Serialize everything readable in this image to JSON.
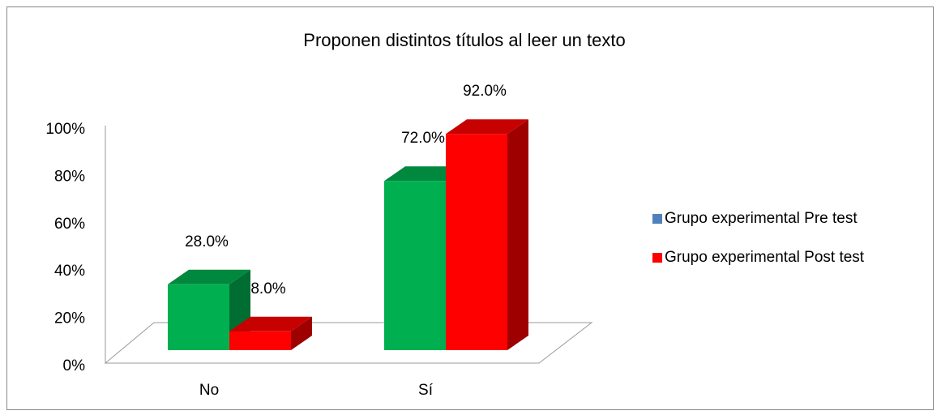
{
  "chart_data": {
    "type": "bar3d",
    "title": "Proponen distintos títulos al leer un texto",
    "categories": [
      "No",
      "Sí"
    ],
    "series": [
      {
        "name": "Grupo experimental Pre test",
        "color": "#00b050",
        "legend_color": "#4f81bd",
        "values": [
          28,
          72
        ],
        "value_labels": [
          "28.0%",
          "72.0%"
        ]
      },
      {
        "name": "Grupo experimental Post test",
        "color": "#ff0000",
        "legend_color": "#ff0000",
        "values": [
          8,
          92
        ],
        "value_labels": [
          "8.0%",
          "92.0%"
        ]
      }
    ],
    "ylim": [
      0,
      100
    ],
    "yticks": [
      {
        "value": 0,
        "label": "0%"
      },
      {
        "value": 20,
        "label": "20%"
      },
      {
        "value": 40,
        "label": "40%"
      },
      {
        "value": 60,
        "label": "60%"
      },
      {
        "value": 80,
        "label": "80%"
      },
      {
        "value": 100,
        "label": "100%"
      }
    ],
    "legend": "right"
  }
}
